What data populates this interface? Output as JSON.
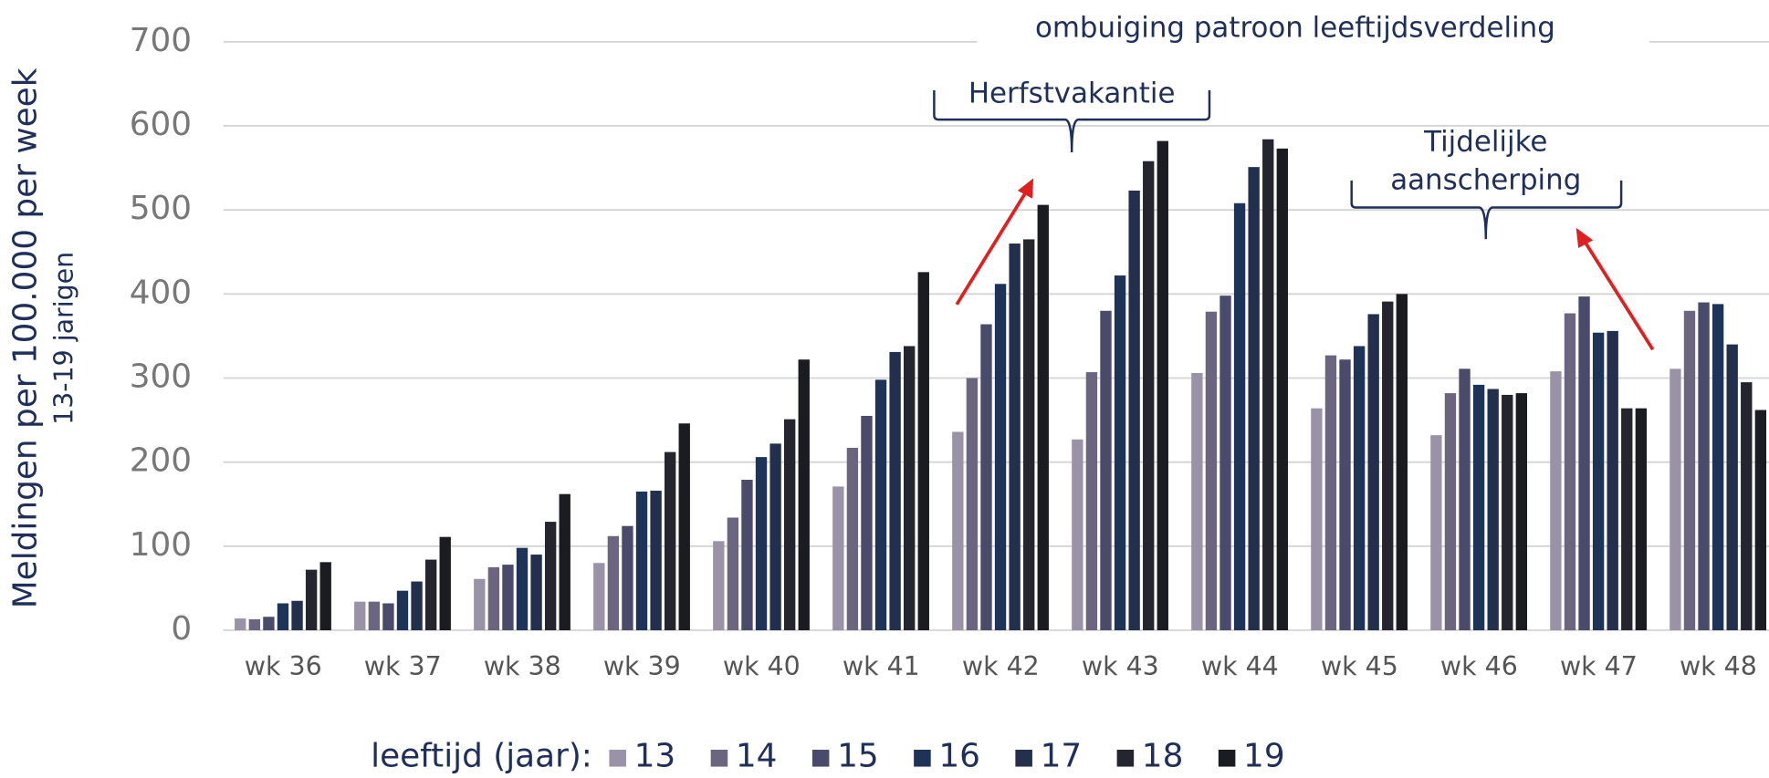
{
  "chart_data": {
    "type": "bar",
    "y_label": [
      "Meldingen per 100.000 per week",
      "13-19 jarigen"
    ],
    "legend_title": "leeftijd (jaar):",
    "annotations": {
      "top": "ombuiging patroon leeftijdsverdeling",
      "holiday": "Herfstvakantie",
      "measures": [
        "Tijdelijke",
        "aanscherping"
      ]
    },
    "categories": [
      "wk 36",
      "wk 37",
      "wk 38",
      "wk 39",
      "wk 40",
      "wk 41",
      "wk 42",
      "wk 43",
      "wk 44",
      "wk 45",
      "wk 46",
      "wk 47",
      "wk 48"
    ],
    "series": [
      {
        "name": "13",
        "color": "#9a93a8",
        "values": [
          14,
          34,
          61,
          80,
          106,
          171,
          236,
          227,
          306,
          264,
          232,
          308,
          311
        ]
      },
      {
        "name": "14",
        "color": "#6c6580",
        "values": [
          13,
          34,
          75,
          112,
          134,
          217,
          300,
          307,
          379,
          327,
          282,
          377,
          380
        ]
      },
      {
        "name": "15",
        "color": "#4a4a6a",
        "values": [
          16,
          32,
          78,
          124,
          179,
          255,
          364,
          380,
          398,
          322,
          311,
          397,
          390
        ]
      },
      {
        "name": "16",
        "color": "#1e3358",
        "values": [
          32,
          47,
          98,
          165,
          206,
          298,
          412,
          422,
          508,
          338,
          292,
          354,
          388
        ]
      },
      {
        "name": "17",
        "color": "#23304d",
        "values": [
          35,
          58,
          90,
          166,
          222,
          331,
          460,
          523,
          551,
          376,
          287,
          356,
          340
        ]
      },
      {
        "name": "18",
        "color": "#24252f",
        "values": [
          72,
          84,
          129,
          212,
          251,
          338,
          465,
          558,
          584,
          391,
          280,
          264,
          295
        ]
      },
      {
        "name": "19",
        "color": "#1b1c22",
        "values": [
          81,
          111,
          162,
          246,
          322,
          426,
          506,
          582,
          573,
          400,
          282,
          264,
          262
        ]
      }
    ],
    "ylim": [
      0,
      700
    ],
    "yticks": [
      0,
      100,
      200,
      300,
      400,
      500,
      600,
      700
    ],
    "grid": true
  }
}
